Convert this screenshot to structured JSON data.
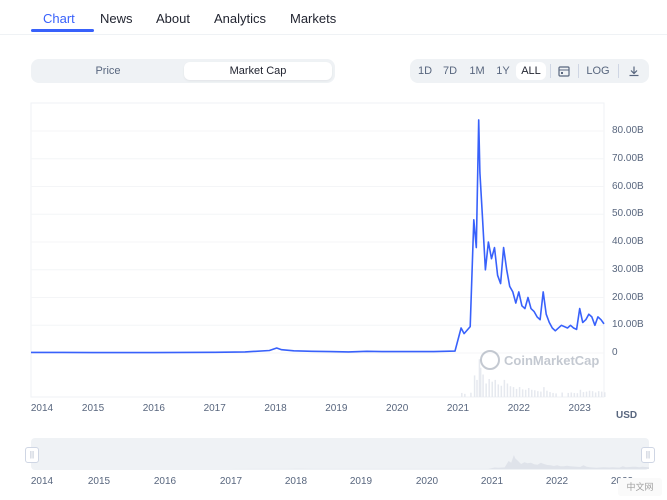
{
  "tabs": [
    {
      "label": "Chart"
    },
    {
      "label": "News"
    },
    {
      "label": "About"
    },
    {
      "label": "Analytics"
    },
    {
      "label": "Markets"
    }
  ],
  "toggle": {
    "price": "Price",
    "market_cap": "Market Cap",
    "selected": "Market Cap"
  },
  "range": {
    "d1": "1D",
    "d7": "7D",
    "m1": "1M",
    "y1": "1Y",
    "all": "ALL",
    "selected": "ALL",
    "log": "LOG"
  },
  "icons": {
    "calendar": "calendar-icon",
    "download": "download-icon",
    "watermark": "coinmarketcap-logo-icon"
  },
  "watermark": "CoinMarketCap",
  "corner_badge": "中文网",
  "colors": {
    "accent": "#3861fb",
    "line": "#3861fb",
    "grid": "#eff2f5",
    "text_muted": "#58667e"
  },
  "chart_data": {
    "type": "line",
    "currency_label": "USD",
    "y_ticks": [
      "80.00B",
      "70.00B",
      "60.00B",
      "50.00B",
      "40.00B",
      "30.00B",
      "20.00B",
      "10.00B",
      "0"
    ],
    "x_ticks": [
      "2014",
      "2015",
      "2016",
      "2017",
      "2018",
      "2019",
      "2020",
      "2021",
      "2022",
      "2023"
    ],
    "nav_x_ticks": [
      "2014",
      "2015",
      "2016",
      "2017",
      "2018",
      "2019",
      "2020",
      "2021",
      "2022",
      "2023"
    ],
    "ylim": [
      0,
      80
    ],
    "xlim": [
      2013.98,
      2023.4
    ],
    "series": [
      {
        "values_x": [
          2013.98,
          2014.5,
          2015.0,
          2015.5,
          2016.0,
          2016.5,
          2017.0,
          2017.5,
          2017.9,
          2018.02,
          2018.1,
          2018.3,
          2018.6,
          2018.9,
          2019.2,
          2019.5,
          2019.8,
          2020.2,
          2020.6,
          2020.95,
          2021.05,
          2021.1,
          2021.2,
          2021.26,
          2021.3,
          2021.34,
          2021.36,
          2021.4,
          2021.45,
          2021.5,
          2021.55,
          2021.6,
          2021.65,
          2021.7,
          2021.75,
          2021.8,
          2021.85,
          2021.9,
          2021.95,
          2022.0,
          2022.05,
          2022.1,
          2022.15,
          2022.2,
          2022.25,
          2022.3,
          2022.35,
          2022.4,
          2022.45,
          2022.5,
          2022.55,
          2022.6,
          2022.7,
          2022.8,
          2022.85,
          2022.9,
          2022.95,
          2023.0,
          2023.05,
          2023.1,
          2023.15,
          2023.2,
          2023.25,
          2023.3,
          2023.35,
          2023.4
        ],
        "values_y": [
          0.2,
          0.2,
          0.15,
          0.15,
          0.15,
          0.2,
          0.25,
          0.4,
          0.9,
          1.8,
          1.2,
          0.8,
          0.6,
          0.5,
          0.4,
          0.6,
          0.5,
          0.5,
          0.5,
          0.7,
          9.0,
          7.0,
          9.5,
          48.0,
          38.0,
          84.0,
          65.0,
          50.0,
          30.0,
          40.0,
          34.0,
          38.0,
          28.0,
          25.0,
          38.0,
          30.0,
          24.0,
          22.0,
          18.0,
          22.0,
          17.0,
          16.0,
          20.0,
          16.0,
          15.0,
          13.0,
          12.0,
          22.0,
          14.0,
          11.0,
          9.0,
          8.0,
          10.0,
          9.0,
          10.0,
          9.0,
          8.5,
          16.0,
          11.0,
          12.0,
          14.0,
          13.0,
          10.0,
          13.0,
          12.0,
          10.5
        ]
      }
    ]
  }
}
